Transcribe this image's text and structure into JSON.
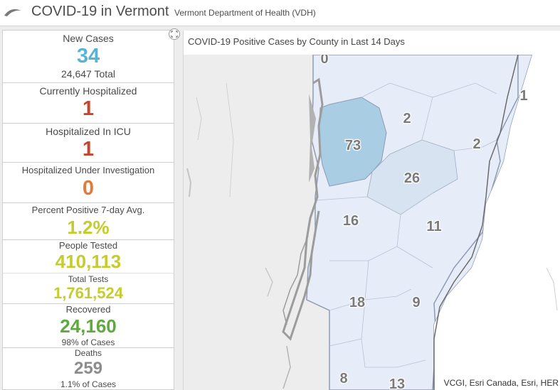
{
  "header": {
    "title": "COVID-19 in Vermont",
    "subtitle": "Vermont Department of Health (VDH)",
    "logo_icon": "swoosh-logo-icon"
  },
  "stats": [
    {
      "label": "New Cases",
      "value": "34",
      "sub": "24,647 Total",
      "color": "#58b4d2"
    },
    {
      "label": "Currently Hospitalized",
      "value": "1",
      "color": "#c8452b"
    },
    {
      "label": "Hospitalized In ICU",
      "value": "1",
      "color": "#c8452b"
    },
    {
      "label": "Hospitalized Under Investigation",
      "value": "0",
      "color": "#e07b39"
    },
    {
      "label": "Percent Positive 7-day Avg.",
      "value": "1.2%",
      "color": "#c5cc2c"
    },
    {
      "label": "People Tested",
      "value": "410,113",
      "color": "#c5cc2c"
    },
    {
      "label": "Total Tests",
      "value": "1,761,524",
      "color": "#c5cc2c"
    },
    {
      "label": "Recovered",
      "value": "24,160",
      "sub": "98% of Cases",
      "color": "#5eaa3f"
    },
    {
      "label": "Deaths",
      "value": "259",
      "sub": "1.1% of Cases",
      "color": "#8c8c8c"
    }
  ],
  "map": {
    "title": "COVID-19 Positive Cases by County in Last 14 Days",
    "attribution": "VCGI, Esri Canada, Esri, HER",
    "expand_icon": "expand-icon",
    "county_labels": [
      "0",
      "1",
      "2",
      "73",
      "2",
      "26",
      "16",
      "11",
      "18",
      "9",
      "8",
      "13"
    ],
    "colors": {
      "base": "#e7edf8",
      "mid": "#d8e3f2",
      "high": "#a9cde3",
      "land": "#ffffff",
      "water": "#b2b2b2"
    }
  }
}
